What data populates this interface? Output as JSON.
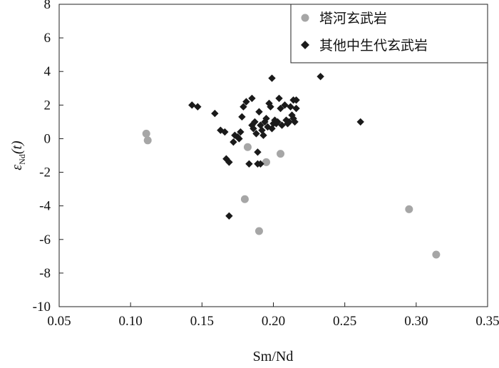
{
  "chart_data": {
    "type": "scatter",
    "title": "",
    "xlabel": "Sm/Nd",
    "ylabel": {
      "main": "ε",
      "sub": "Nd",
      "suffix": "(t)"
    },
    "xlim": [
      0.05,
      0.35
    ],
    "ylim": [
      -10,
      8
    ],
    "xticks": [
      0.05,
      0.1,
      0.15,
      0.2,
      0.25,
      0.3,
      0.35
    ],
    "xtick_labels": [
      "0.05",
      "0.10",
      "0.15",
      "0.20",
      "0.25",
      "0.30",
      "0.35"
    ],
    "yticks": [
      -10,
      -8,
      -6,
      -4,
      -2,
      0,
      2,
      4,
      6,
      8
    ],
    "ytick_labels": [
      "-10",
      "-8",
      "-6",
      "-4",
      "-2",
      "0",
      "2",
      "4",
      "6",
      "8"
    ],
    "grid": false,
    "legend_position": "top-right",
    "series": [
      {
        "name": "塔河玄武岩",
        "marker": "circle",
        "color": "#a6a6a6",
        "points": [
          [
            0.111,
            0.3
          ],
          [
            0.112,
            -0.1
          ],
          [
            0.182,
            -0.5
          ],
          [
            0.195,
            -1.4
          ],
          [
            0.205,
            -0.9
          ],
          [
            0.18,
            -3.6
          ],
          [
            0.19,
            -5.5
          ],
          [
            0.295,
            -4.2
          ],
          [
            0.314,
            -6.9
          ]
        ]
      },
      {
        "name": "其他中生代玄武岩",
        "marker": "diamond",
        "color": "#1a1a1a",
        "points": [
          [
            0.143,
            2.0
          ],
          [
            0.147,
            1.9
          ],
          [
            0.159,
            1.5
          ],
          [
            0.163,
            0.5
          ],
          [
            0.166,
            0.4
          ],
          [
            0.167,
            -1.2
          ],
          [
            0.169,
            -1.4
          ],
          [
            0.169,
            -4.6
          ],
          [
            0.172,
            -0.2
          ],
          [
            0.173,
            0.2
          ],
          [
            0.175,
            0.1
          ],
          [
            0.176,
            0.0
          ],
          [
            0.177,
            0.4
          ],
          [
            0.178,
            1.3
          ],
          [
            0.179,
            1.9
          ],
          [
            0.181,
            2.2
          ],
          [
            0.183,
            -1.5
          ],
          [
            0.185,
            2.4
          ],
          [
            0.185,
            0.8
          ],
          [
            0.186,
            0.6
          ],
          [
            0.187,
            1.0
          ],
          [
            0.188,
            0.3
          ],
          [
            0.189,
            -0.8
          ],
          [
            0.189,
            -1.5
          ],
          [
            0.19,
            1.6
          ],
          [
            0.191,
            -1.5
          ],
          [
            0.191,
            0.8
          ],
          [
            0.192,
            0.5
          ],
          [
            0.193,
            0.2
          ],
          [
            0.194,
            1.0
          ],
          [
            0.195,
            1.2
          ],
          [
            0.196,
            0.7
          ],
          [
            0.197,
            2.1
          ],
          [
            0.198,
            1.9
          ],
          [
            0.199,
            3.6
          ],
          [
            0.199,
            0.6
          ],
          [
            0.2,
            0.9
          ],
          [
            0.201,
            1.1
          ],
          [
            0.202,
            0.9
          ],
          [
            0.203,
            1.0
          ],
          [
            0.204,
            2.4
          ],
          [
            0.205,
            1.8
          ],
          [
            0.206,
            0.8
          ],
          [
            0.208,
            2.0
          ],
          [
            0.209,
            1.1
          ],
          [
            0.21,
            0.9
          ],
          [
            0.211,
            1.0
          ],
          [
            0.212,
            1.9
          ],
          [
            0.213,
            1.4
          ],
          [
            0.214,
            2.3
          ],
          [
            0.214,
            1.2
          ],
          [
            0.215,
            1.0
          ],
          [
            0.216,
            2.3
          ],
          [
            0.216,
            1.8
          ],
          [
            0.233,
            3.7
          ],
          [
            0.261,
            1.0
          ]
        ]
      }
    ]
  }
}
